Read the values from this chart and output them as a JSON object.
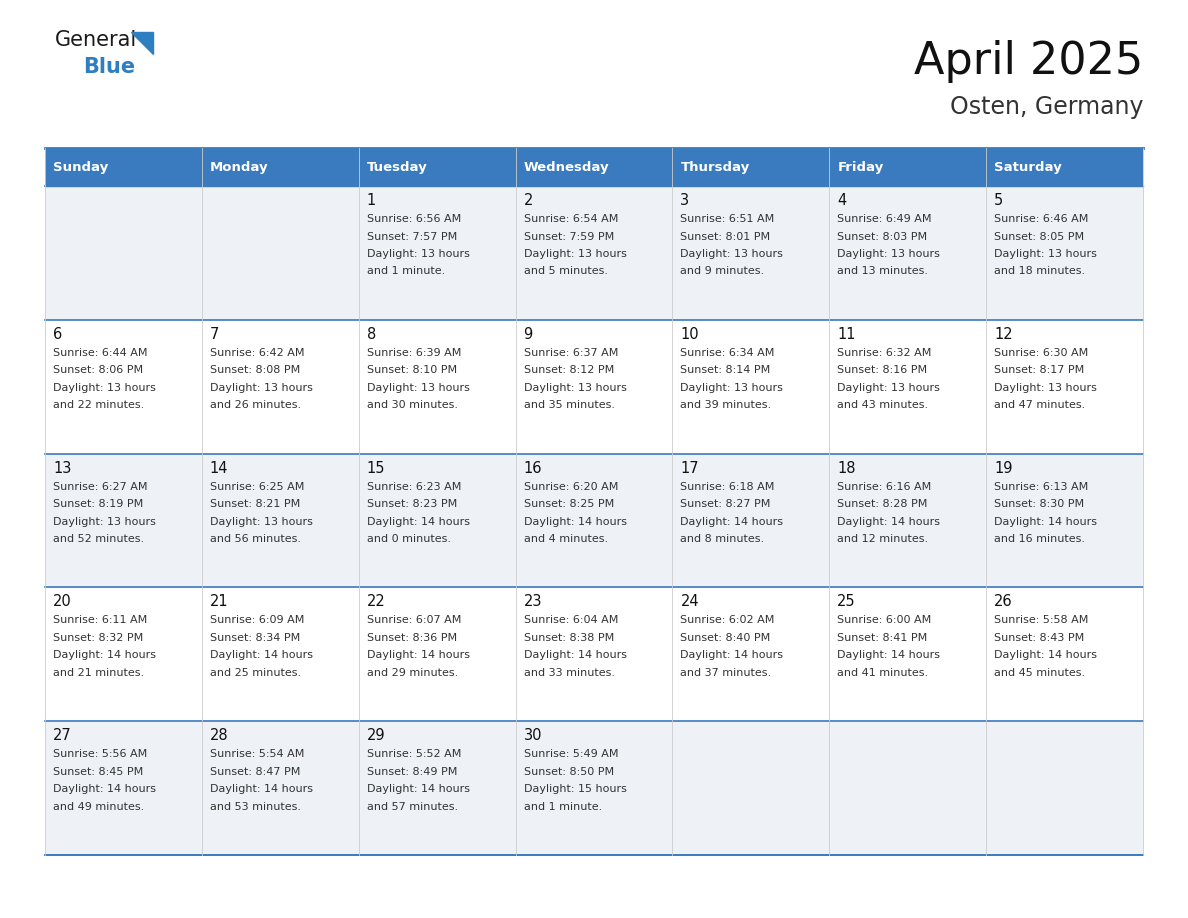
{
  "title": "April 2025",
  "subtitle": "Osten, Germany",
  "days_of_week": [
    "Sunday",
    "Monday",
    "Tuesday",
    "Wednesday",
    "Thursday",
    "Friday",
    "Saturday"
  ],
  "header_bg": "#3a7abf",
  "header_text": "#ffffff",
  "row_bg_odd": "#eef2f7",
  "row_bg_even": "#ffffff",
  "border_color": "#3a7abf",
  "cell_border_color": "#aaaaaa",
  "text_color": "#333333",
  "day_number_color": "#111111",
  "title_color": "#111111",
  "subtitle_color": "#333333",
  "logo_general_color": "#1a1a1a",
  "logo_blue_color": "#2e7fc1",
  "logo_triangle_color": "#2e7fc1",
  "cal_data": [
    [
      {
        "day": null,
        "sunrise": null,
        "sunset": null,
        "daylight_line1": null,
        "daylight_line2": null
      },
      {
        "day": null,
        "sunrise": null,
        "sunset": null,
        "daylight_line1": null,
        "daylight_line2": null
      },
      {
        "day": 1,
        "sunrise": "6:56 AM",
        "sunset": "7:57 PM",
        "daylight_line1": "13 hours",
        "daylight_line2": "and 1 minute."
      },
      {
        "day": 2,
        "sunrise": "6:54 AM",
        "sunset": "7:59 PM",
        "daylight_line1": "13 hours",
        "daylight_line2": "and 5 minutes."
      },
      {
        "day": 3,
        "sunrise": "6:51 AM",
        "sunset": "8:01 PM",
        "daylight_line1": "13 hours",
        "daylight_line2": "and 9 minutes."
      },
      {
        "day": 4,
        "sunrise": "6:49 AM",
        "sunset": "8:03 PM",
        "daylight_line1": "13 hours",
        "daylight_line2": "and 13 minutes."
      },
      {
        "day": 5,
        "sunrise": "6:46 AM",
        "sunset": "8:05 PM",
        "daylight_line1": "13 hours",
        "daylight_line2": "and 18 minutes."
      }
    ],
    [
      {
        "day": 6,
        "sunrise": "6:44 AM",
        "sunset": "8:06 PM",
        "daylight_line1": "13 hours",
        "daylight_line2": "and 22 minutes."
      },
      {
        "day": 7,
        "sunrise": "6:42 AM",
        "sunset": "8:08 PM",
        "daylight_line1": "13 hours",
        "daylight_line2": "and 26 minutes."
      },
      {
        "day": 8,
        "sunrise": "6:39 AM",
        "sunset": "8:10 PM",
        "daylight_line1": "13 hours",
        "daylight_line2": "and 30 minutes."
      },
      {
        "day": 9,
        "sunrise": "6:37 AM",
        "sunset": "8:12 PM",
        "daylight_line1": "13 hours",
        "daylight_line2": "and 35 minutes."
      },
      {
        "day": 10,
        "sunrise": "6:34 AM",
        "sunset": "8:14 PM",
        "daylight_line1": "13 hours",
        "daylight_line2": "and 39 minutes."
      },
      {
        "day": 11,
        "sunrise": "6:32 AM",
        "sunset": "8:16 PM",
        "daylight_line1": "13 hours",
        "daylight_line2": "and 43 minutes."
      },
      {
        "day": 12,
        "sunrise": "6:30 AM",
        "sunset": "8:17 PM",
        "daylight_line1": "13 hours",
        "daylight_line2": "and 47 minutes."
      }
    ],
    [
      {
        "day": 13,
        "sunrise": "6:27 AM",
        "sunset": "8:19 PM",
        "daylight_line1": "13 hours",
        "daylight_line2": "and 52 minutes."
      },
      {
        "day": 14,
        "sunrise": "6:25 AM",
        "sunset": "8:21 PM",
        "daylight_line1": "13 hours",
        "daylight_line2": "and 56 minutes."
      },
      {
        "day": 15,
        "sunrise": "6:23 AM",
        "sunset": "8:23 PM",
        "daylight_line1": "14 hours",
        "daylight_line2": "and 0 minutes."
      },
      {
        "day": 16,
        "sunrise": "6:20 AM",
        "sunset": "8:25 PM",
        "daylight_line1": "14 hours",
        "daylight_line2": "and 4 minutes."
      },
      {
        "day": 17,
        "sunrise": "6:18 AM",
        "sunset": "8:27 PM",
        "daylight_line1": "14 hours",
        "daylight_line2": "and 8 minutes."
      },
      {
        "day": 18,
        "sunrise": "6:16 AM",
        "sunset": "8:28 PM",
        "daylight_line1": "14 hours",
        "daylight_line2": "and 12 minutes."
      },
      {
        "day": 19,
        "sunrise": "6:13 AM",
        "sunset": "8:30 PM",
        "daylight_line1": "14 hours",
        "daylight_line2": "and 16 minutes."
      }
    ],
    [
      {
        "day": 20,
        "sunrise": "6:11 AM",
        "sunset": "8:32 PM",
        "daylight_line1": "14 hours",
        "daylight_line2": "and 21 minutes."
      },
      {
        "day": 21,
        "sunrise": "6:09 AM",
        "sunset": "8:34 PM",
        "daylight_line1": "14 hours",
        "daylight_line2": "and 25 minutes."
      },
      {
        "day": 22,
        "sunrise": "6:07 AM",
        "sunset": "8:36 PM",
        "daylight_line1": "14 hours",
        "daylight_line2": "and 29 minutes."
      },
      {
        "day": 23,
        "sunrise": "6:04 AM",
        "sunset": "8:38 PM",
        "daylight_line1": "14 hours",
        "daylight_line2": "and 33 minutes."
      },
      {
        "day": 24,
        "sunrise": "6:02 AM",
        "sunset": "8:40 PM",
        "daylight_line1": "14 hours",
        "daylight_line2": "and 37 minutes."
      },
      {
        "day": 25,
        "sunrise": "6:00 AM",
        "sunset": "8:41 PM",
        "daylight_line1": "14 hours",
        "daylight_line2": "and 41 minutes."
      },
      {
        "day": 26,
        "sunrise": "5:58 AM",
        "sunset": "8:43 PM",
        "daylight_line1": "14 hours",
        "daylight_line2": "and 45 minutes."
      }
    ],
    [
      {
        "day": 27,
        "sunrise": "5:56 AM",
        "sunset": "8:45 PM",
        "daylight_line1": "14 hours",
        "daylight_line2": "and 49 minutes."
      },
      {
        "day": 28,
        "sunrise": "5:54 AM",
        "sunset": "8:47 PM",
        "daylight_line1": "14 hours",
        "daylight_line2": "and 53 minutes."
      },
      {
        "day": 29,
        "sunrise": "5:52 AM",
        "sunset": "8:49 PM",
        "daylight_line1": "14 hours",
        "daylight_line2": "and 57 minutes."
      },
      {
        "day": 30,
        "sunrise": "5:49 AM",
        "sunset": "8:50 PM",
        "daylight_line1": "15 hours",
        "daylight_line2": "and 1 minute."
      },
      {
        "day": null,
        "sunrise": null,
        "sunset": null,
        "daylight_line1": null,
        "daylight_line2": null
      },
      {
        "day": null,
        "sunrise": null,
        "sunset": null,
        "daylight_line1": null,
        "daylight_line2": null
      },
      {
        "day": null,
        "sunrise": null,
        "sunset": null,
        "daylight_line1": null,
        "daylight_line2": null
      }
    ]
  ]
}
